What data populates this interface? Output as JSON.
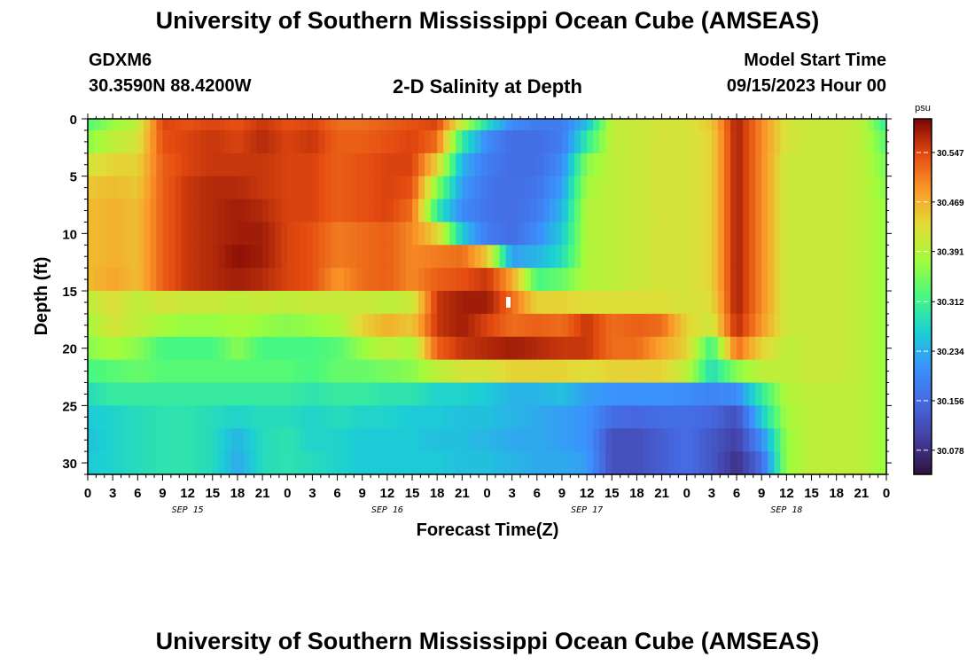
{
  "header": {
    "title": "University of Southern Mississippi Ocean Cube (AMSEAS)",
    "station_id": "GDXM6",
    "coordinates": "30.3590N  88.4200W",
    "chart_title": "2-D Salinity at Depth",
    "model_start_label": "Model Start Time",
    "model_start_value": "09/15/2023 Hour 00"
  },
  "footer": {
    "title": "University of Southern Mississippi Ocean Cube (AMSEAS)"
  },
  "chart_data": {
    "type": "heatmap",
    "title": "2-D Salinity at Depth",
    "xlabel": "Forecast Time(Z)",
    "ylabel": "Depth (ft)",
    "x_tick_labels": [
      "0",
      "3",
      "6",
      "9",
      "12",
      "15",
      "18",
      "21",
      "0",
      "3",
      "6",
      "9",
      "12",
      "15",
      "18",
      "21",
      "0",
      "3",
      "6",
      "9",
      "12",
      "15",
      "18",
      "21",
      "0",
      "3",
      "6",
      "9",
      "12",
      "15",
      "18",
      "21",
      "0"
    ],
    "x_range_hours": [
      0,
      96
    ],
    "date_labels": [
      {
        "label": "SEP 15",
        "hour": 12
      },
      {
        "label": "SEP 16",
        "hour": 36
      },
      {
        "label": "SEP 17",
        "hour": 60
      },
      {
        "label": "SEP 18",
        "hour": 84
      }
    ],
    "y_tick_labels": [
      "0",
      "5",
      "10",
      "15",
      "20",
      "25",
      "30"
    ],
    "y_range_ft": [
      0,
      31
    ],
    "y_inverted": true,
    "colorbar": {
      "unit": "psu",
      "tick_labels": [
        "30.547",
        "30.469",
        "30.391",
        "30.312",
        "30.234",
        "30.156",
        "30.078"
      ],
      "tick_values": [
        30.547,
        30.469,
        30.391,
        30.312,
        30.234,
        30.156,
        30.078
      ],
      "range": [
        30.04,
        30.6
      ]
    },
    "time_hours": [
      0,
      3,
      6,
      9,
      12,
      15,
      18,
      21,
      24,
      27,
      30,
      33,
      36,
      39,
      42,
      45,
      48,
      51,
      54,
      57,
      60,
      63,
      66,
      69,
      72,
      75,
      78,
      81,
      84,
      87,
      90,
      93,
      96
    ],
    "depth_ft": [
      0,
      2,
      4,
      6,
      8,
      10,
      12,
      14,
      16,
      18,
      20,
      22,
      24,
      26,
      28,
      30
    ],
    "salinity": [
      [
        30.33,
        30.37,
        30.4,
        30.55,
        30.54,
        30.55,
        30.54,
        30.56,
        30.54,
        30.55,
        30.52,
        30.52,
        30.53,
        30.54,
        30.55,
        30.4,
        30.28,
        30.2,
        30.18,
        30.18,
        30.25,
        30.4,
        30.41,
        30.42,
        30.42,
        30.45,
        30.58,
        30.5,
        30.42,
        30.41,
        30.41,
        30.4,
        30.3
      ],
      [
        30.36,
        30.4,
        30.42,
        30.54,
        30.55,
        30.56,
        30.55,
        30.57,
        30.55,
        30.56,
        30.53,
        30.53,
        30.54,
        30.55,
        30.52,
        30.3,
        30.2,
        30.16,
        30.16,
        30.18,
        30.3,
        30.4,
        30.41,
        30.42,
        30.42,
        30.44,
        30.58,
        30.5,
        30.42,
        30.41,
        30.41,
        30.4,
        30.33
      ],
      [
        30.42,
        30.44,
        30.44,
        30.53,
        30.55,
        30.56,
        30.56,
        30.56,
        30.55,
        30.55,
        30.53,
        30.54,
        30.55,
        30.55,
        30.44,
        30.24,
        30.18,
        30.16,
        30.16,
        30.2,
        30.36,
        30.4,
        30.41,
        30.42,
        30.42,
        30.44,
        30.58,
        30.5,
        30.41,
        30.41,
        30.41,
        30.4,
        30.35
      ],
      [
        30.45,
        30.46,
        30.45,
        30.53,
        30.56,
        30.57,
        30.57,
        30.56,
        30.55,
        30.55,
        30.53,
        30.54,
        30.55,
        30.54,
        30.36,
        30.22,
        30.17,
        30.16,
        30.17,
        30.22,
        30.38,
        30.4,
        30.41,
        30.42,
        30.42,
        30.44,
        30.58,
        30.5,
        30.41,
        30.41,
        30.41,
        30.4,
        30.36
      ],
      [
        30.46,
        30.47,
        30.46,
        30.53,
        30.56,
        30.57,
        30.58,
        30.57,
        30.55,
        30.55,
        30.53,
        30.54,
        30.55,
        30.52,
        30.3,
        30.2,
        30.17,
        30.16,
        30.18,
        30.24,
        30.39,
        30.4,
        30.41,
        30.42,
        30.42,
        30.44,
        30.58,
        30.5,
        30.41,
        30.41,
        30.41,
        30.4,
        30.37
      ],
      [
        30.46,
        30.47,
        30.46,
        30.53,
        30.56,
        30.57,
        30.58,
        30.58,
        30.55,
        30.54,
        30.51,
        30.52,
        30.53,
        30.5,
        30.44,
        30.26,
        30.18,
        30.16,
        30.2,
        30.26,
        30.39,
        30.4,
        30.41,
        30.42,
        30.42,
        30.44,
        30.58,
        30.5,
        30.41,
        30.41,
        30.41,
        30.4,
        30.37
      ],
      [
        30.46,
        30.47,
        30.46,
        30.53,
        30.56,
        30.57,
        30.59,
        30.58,
        30.55,
        30.54,
        30.51,
        30.52,
        30.53,
        30.5,
        30.51,
        30.52,
        30.45,
        30.22,
        30.24,
        30.28,
        30.39,
        30.4,
        30.41,
        30.42,
        30.42,
        30.44,
        30.58,
        30.5,
        30.41,
        30.41,
        30.41,
        30.4,
        30.37
      ],
      [
        30.46,
        30.48,
        30.46,
        30.53,
        30.56,
        30.57,
        30.58,
        30.57,
        30.55,
        30.54,
        30.49,
        30.52,
        30.53,
        30.5,
        30.53,
        30.54,
        30.56,
        30.48,
        30.32,
        30.34,
        30.39,
        30.4,
        30.41,
        30.42,
        30.42,
        30.44,
        30.58,
        30.5,
        30.41,
        30.41,
        30.41,
        30.4,
        30.37
      ],
      [
        30.4,
        30.43,
        30.4,
        30.42,
        30.41,
        30.41,
        30.4,
        30.41,
        30.4,
        30.41,
        30.41,
        30.41,
        30.4,
        30.41,
        30.56,
        30.58,
        30.58,
        30.52,
        30.44,
        30.44,
        30.43,
        30.43,
        30.43,
        30.43,
        30.42,
        30.43,
        30.58,
        30.5,
        30.41,
        30.41,
        30.41,
        30.4,
        30.37
      ],
      [
        30.38,
        30.42,
        30.4,
        30.38,
        30.37,
        30.37,
        30.38,
        30.37,
        30.36,
        30.37,
        30.38,
        30.44,
        30.47,
        30.45,
        30.56,
        30.58,
        30.55,
        30.52,
        30.53,
        30.52,
        30.56,
        30.52,
        30.53,
        30.52,
        30.44,
        30.41,
        30.57,
        30.49,
        30.41,
        30.41,
        30.41,
        30.4,
        30.37
      ],
      [
        30.36,
        30.38,
        30.36,
        30.32,
        30.32,
        30.32,
        30.36,
        30.32,
        30.32,
        30.32,
        30.33,
        30.37,
        30.4,
        30.38,
        30.53,
        30.56,
        30.57,
        30.58,
        30.57,
        30.56,
        30.56,
        30.52,
        30.52,
        30.48,
        30.44,
        30.31,
        30.52,
        30.44,
        30.4,
        30.41,
        30.41,
        30.4,
        30.37
      ],
      [
        30.32,
        30.33,
        30.34,
        30.33,
        30.33,
        30.33,
        30.33,
        30.33,
        30.33,
        30.32,
        30.34,
        30.34,
        30.35,
        30.36,
        30.4,
        30.42,
        30.42,
        30.44,
        30.44,
        30.44,
        30.43,
        30.44,
        30.44,
        30.44,
        30.4,
        30.28,
        30.36,
        30.4,
        30.4,
        30.41,
        30.41,
        30.4,
        30.37
      ],
      [
        30.28,
        30.3,
        30.3,
        30.3,
        30.3,
        30.3,
        30.3,
        30.3,
        30.3,
        30.29,
        30.3,
        30.3,
        30.29,
        30.29,
        30.27,
        30.27,
        30.26,
        30.24,
        30.24,
        30.25,
        30.22,
        30.21,
        30.21,
        30.21,
        30.2,
        30.19,
        30.2,
        30.3,
        30.39,
        30.4,
        30.4,
        30.4,
        30.37
      ],
      [
        30.26,
        30.27,
        30.28,
        30.29,
        30.29,
        30.28,
        30.27,
        30.28,
        30.28,
        30.27,
        30.28,
        30.27,
        30.27,
        30.26,
        30.26,
        30.25,
        30.25,
        30.24,
        30.23,
        30.22,
        30.21,
        30.16,
        30.15,
        30.16,
        30.16,
        30.15,
        30.12,
        30.26,
        30.38,
        30.4,
        30.4,
        30.4,
        30.37
      ],
      [
        30.25,
        30.27,
        30.28,
        30.29,
        30.29,
        30.28,
        30.24,
        30.28,
        30.29,
        30.27,
        30.27,
        30.26,
        30.26,
        30.26,
        30.25,
        30.25,
        30.24,
        30.23,
        30.23,
        30.22,
        30.21,
        30.12,
        30.12,
        30.14,
        30.16,
        30.13,
        30.1,
        30.2,
        30.37,
        30.4,
        30.4,
        30.4,
        30.37
      ],
      [
        30.26,
        30.27,
        30.28,
        30.29,
        30.29,
        30.28,
        30.23,
        30.28,
        30.29,
        30.28,
        30.27,
        30.26,
        30.26,
        30.26,
        30.26,
        30.25,
        30.25,
        30.24,
        30.23,
        30.23,
        30.22,
        30.12,
        30.12,
        30.14,
        30.16,
        30.13,
        30.08,
        30.16,
        30.37,
        30.4,
        30.4,
        30.4,
        30.37
      ]
    ]
  }
}
